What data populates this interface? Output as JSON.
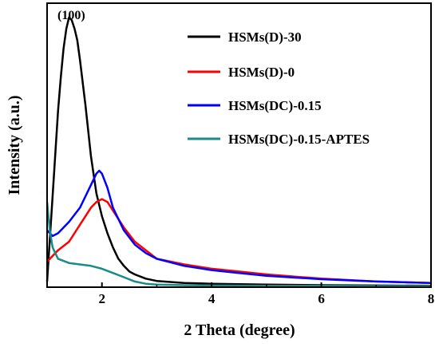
{
  "chart_data": {
    "type": "line",
    "xlabel": "2 Theta (degree)",
    "ylabel": "Intensity (a.u.)",
    "xlim": [
      1,
      8
    ],
    "ylim": [
      0,
      1
    ],
    "xticks": [
      2,
      4,
      6,
      8
    ],
    "grid": false,
    "legend_position": "top-right",
    "annotations": [
      {
        "text": "(100)",
        "x": 1.45,
        "y": 0.98
      }
    ],
    "series": [
      {
        "name": "HSMs(D)-30",
        "color": "#000000",
        "x": [
          1.0,
          1.1,
          1.2,
          1.25,
          1.3,
          1.35,
          1.4,
          1.45,
          1.5,
          1.55,
          1.6,
          1.7,
          1.8,
          1.9,
          2.0,
          2.1,
          2.2,
          2.3,
          2.4,
          2.5,
          2.6,
          2.8,
          3.0,
          3.5,
          4.0,
          5.0,
          6.0,
          7.0,
          8.0
        ],
        "y": [
          0.02,
          0.32,
          0.62,
          0.74,
          0.84,
          0.91,
          0.95,
          0.94,
          0.91,
          0.87,
          0.8,
          0.64,
          0.46,
          0.33,
          0.25,
          0.19,
          0.14,
          0.1,
          0.075,
          0.055,
          0.045,
          0.03,
          0.022,
          0.015,
          0.012,
          0.009,
          0.007,
          0.006,
          0.005
        ]
      },
      {
        "name": "HSMs(D)-0",
        "color": "#ff0000",
        "x": [
          1.0,
          1.2,
          1.4,
          1.6,
          1.8,
          1.9,
          2.0,
          2.1,
          2.2,
          2.4,
          2.6,
          2.8,
          3.0,
          3.5,
          4.0,
          4.5,
          5.0,
          6.0,
          7.0,
          8.0
        ],
        "y": [
          0.09,
          0.13,
          0.16,
          0.22,
          0.28,
          0.3,
          0.31,
          0.3,
          0.27,
          0.21,
          0.16,
          0.13,
          0.1,
          0.08,
          0.065,
          0.055,
          0.045,
          0.03,
          0.02,
          0.015
        ]
      },
      {
        "name": "HSMs(DC)-0.15",
        "color": "#0000ff",
        "x": [
          1.0,
          1.1,
          1.2,
          1.4,
          1.6,
          1.7,
          1.8,
          1.9,
          1.95,
          2.0,
          2.1,
          2.2,
          2.4,
          2.6,
          2.8,
          3.0,
          3.5,
          4.0,
          4.5,
          5.0,
          6.0,
          7.0,
          8.0
        ],
        "y": [
          0.2,
          0.18,
          0.19,
          0.23,
          0.28,
          0.32,
          0.36,
          0.4,
          0.41,
          0.4,
          0.35,
          0.28,
          0.2,
          0.15,
          0.12,
          0.1,
          0.075,
          0.06,
          0.05,
          0.04,
          0.028,
          0.02,
          0.015
        ]
      },
      {
        "name": "HSMs(DC)-0.15-APTES",
        "color": "#1a8a8a",
        "x": [
          1.0,
          1.05,
          1.1,
          1.2,
          1.4,
          1.6,
          1.8,
          2.0,
          2.2,
          2.4,
          2.6,
          2.8,
          3.0,
          3.5,
          4.0,
          5.0,
          6.0,
          7.0,
          8.0
        ],
        "y": [
          0.3,
          0.2,
          0.14,
          0.1,
          0.085,
          0.08,
          0.075,
          0.065,
          0.05,
          0.035,
          0.02,
          0.012,
          0.009,
          0.007,
          0.006,
          0.005,
          0.005,
          0.004,
          0.004
        ]
      }
    ]
  }
}
